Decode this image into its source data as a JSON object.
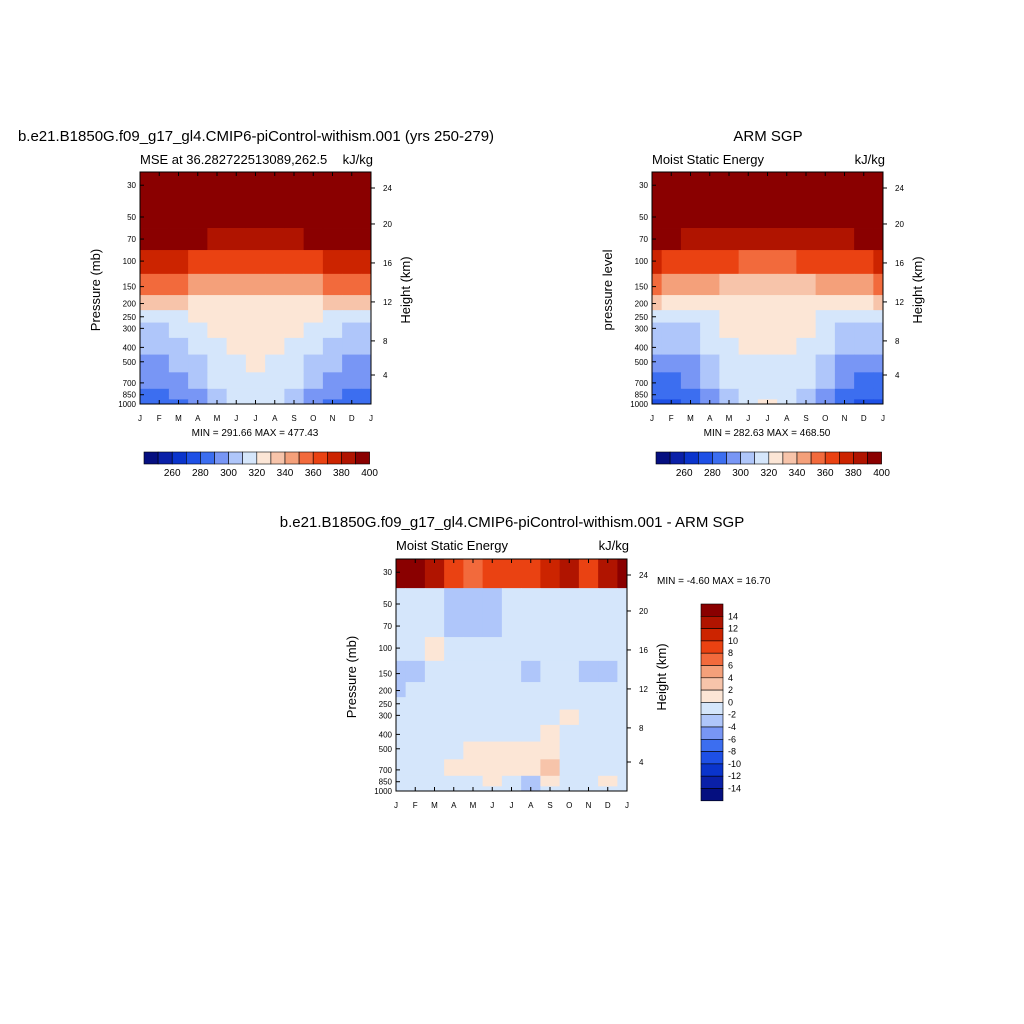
{
  "chart_data": [
    {
      "type": "heatmap",
      "title": "b.e21.B1850G.f09_g17_gl4.CMIP6-piControl-withism.001 (yrs 250-279)",
      "subtitle_left": "MSE at 36.282722513089,262.5",
      "subtitle_right": "kJ/kg",
      "ylabel": "Pressure (mb)",
      "ylabel_right": "Height (km)",
      "x_ticks": [
        "J",
        "F",
        "M",
        "A",
        "M",
        "J",
        "J",
        "A",
        "S",
        "O",
        "N",
        "D",
        "J"
      ],
      "y_ticks": [
        "30",
        "50",
        "70",
        "100",
        "150",
        "200",
        "250",
        "300",
        "400",
        "500",
        "700",
        "850",
        "1000"
      ],
      "y_right_ticks": [
        "24",
        "20",
        "16",
        "12",
        "8",
        "4"
      ],
      "stats": "MIN = 291.66 MAX = 477.43",
      "colorbar_labels": [
        "260",
        "280",
        "300",
        "320",
        "340",
        "360",
        "380",
        "400"
      ],
      "levels": [
        250,
        260,
        270,
        280,
        290,
        300,
        310,
        320,
        330,
        340,
        350,
        360,
        370,
        380,
        390,
        400
      ],
      "values": [
        [
          480,
          480,
          480,
          480,
          480,
          480,
          480,
          480,
          480,
          480,
          480,
          480,
          480
        ],
        [
          470,
          470,
          470,
          470,
          470,
          470,
          470,
          470,
          470,
          470,
          470,
          470,
          470
        ],
        [
          405,
          405,
          403,
          400,
          398,
          396,
          395,
          396,
          398,
          400,
          402,
          405,
          405
        ],
        [
          385,
          383,
          380,
          377,
          375,
          373,
          372,
          373,
          375,
          377,
          380,
          383,
          385
        ],
        [
          365,
          363,
          360,
          357,
          354,
          351,
          350,
          351,
          354,
          357,
          360,
          363,
          365
        ],
        [
          345,
          343,
          341,
          339,
          337,
          335,
          334,
          335,
          337,
          339,
          341,
          343,
          345
        ],
        [
          328,
          327,
          327,
          330,
          334,
          337,
          338,
          337,
          334,
          330,
          327,
          327,
          328
        ],
        [
          318,
          318,
          320,
          325,
          331,
          335,
          336,
          335,
          331,
          325,
          320,
          318,
          318
        ],
        [
          312,
          314,
          318,
          323,
          328,
          332,
          333,
          332,
          328,
          323,
          318,
          314,
          312
        ],
        [
          306,
          308,
          312,
          318,
          324,
          328,
          330,
          328,
          324,
          318,
          312,
          308,
          306
        ],
        [
          300,
          302,
          306,
          313,
          321,
          327,
          329,
          327,
          321,
          313,
          306,
          302,
          300
        ],
        [
          295,
          297,
          301,
          308,
          318,
          326,
          328,
          326,
          318,
          308,
          301,
          297,
          295
        ],
        [
          292,
          294,
          298,
          305,
          316,
          325,
          327,
          325,
          316,
          305,
          298,
          294,
          292
        ]
      ]
    },
    {
      "type": "heatmap",
      "title": "ARM SGP",
      "subtitle_left": "Moist Static Energy",
      "subtitle_right": "kJ/kg",
      "ylabel": "pressure level",
      "ylabel_right": "Height (km)",
      "x_ticks": [
        "J",
        "F",
        "M",
        "A",
        "M",
        "J",
        "J",
        "A",
        "S",
        "O",
        "N",
        "D",
        "J"
      ],
      "y_ticks": [
        "30",
        "50",
        "70",
        "100",
        "150",
        "200",
        "250",
        "300",
        "400",
        "500",
        "700",
        "850",
        "1000"
      ],
      "y_right_ticks": [
        "24",
        "20",
        "16",
        "12",
        "8",
        "4"
      ],
      "stats": "MIN = 282.63 MAX = 468.50",
      "colorbar_labels": [
        "260",
        "280",
        "300",
        "320",
        "340",
        "360",
        "380",
        "400"
      ],
      "levels": [
        250,
        260,
        270,
        280,
        290,
        300,
        310,
        320,
        330,
        340,
        350,
        360,
        370,
        380,
        390,
        400
      ],
      "values": [
        [
          470,
          470,
          470,
          470,
          470,
          470,
          470,
          470,
          470,
          470,
          470,
          470,
          470
        ],
        [
          460,
          460,
          460,
          460,
          460,
          460,
          460,
          460,
          460,
          460,
          460,
          460,
          460
        ],
        [
          400,
          400,
          398,
          396,
          394,
          392,
          391,
          392,
          394,
          396,
          398,
          400,
          400
        ],
        [
          380,
          378,
          376,
          373,
          371,
          369,
          368,
          369,
          371,
          373,
          376,
          378,
          380
        ],
        [
          360,
          358,
          355,
          352,
          349,
          347,
          346,
          347,
          349,
          352,
          355,
          358,
          360
        ],
        [
          340,
          338,
          337,
          336,
          334,
          333,
          332,
          333,
          334,
          336,
          337,
          338,
          340
        ],
        [
          325,
          324,
          325,
          328,
          333,
          336,
          337,
          336,
          333,
          328,
          325,
          324,
          325
        ],
        [
          316,
          316,
          318,
          323,
          330,
          334,
          335,
          334,
          330,
          323,
          318,
          316,
          316
        ],
        [
          310,
          312,
          316,
          321,
          327,
          331,
          332,
          331,
          327,
          321,
          316,
          312,
          310
        ],
        [
          303,
          305,
          309,
          316,
          323,
          327,
          329,
          327,
          323,
          316,
          309,
          305,
          303
        ],
        [
          297,
          299,
          303,
          311,
          320,
          326,
          328,
          326,
          320,
          311,
          303,
          299,
          297
        ],
        [
          290,
          292,
          297,
          306,
          317,
          326,
          329,
          326,
          317,
          306,
          297,
          292,
          290
        ],
        [
          285,
          287,
          293,
          302,
          315,
          327,
          332,
          327,
          315,
          302,
          293,
          287,
          285
        ]
      ]
    },
    {
      "type": "heatmap",
      "title": "b.e21.B1850G.f09_g17_gl4.CMIP6-piControl-withism.001 - ARM SGP",
      "subtitle_left": "Moist Static Energy",
      "subtitle_right": "kJ/kg",
      "ylabel": "Pressure (mb)",
      "ylabel_right": "Height (km)",
      "x_ticks": [
        "J",
        "F",
        "M",
        "A",
        "M",
        "J",
        "J",
        "A",
        "S",
        "O",
        "N",
        "D",
        "J"
      ],
      "y_ticks": [
        "30",
        "50",
        "70",
        "100",
        "150",
        "200",
        "250",
        "300",
        "400",
        "500",
        "700",
        "850",
        "1000"
      ],
      "y_right_ticks": [
        "24",
        "20",
        "16",
        "12",
        "8",
        "4"
      ],
      "stats": "MIN =  -4.60 MAX =  16.70",
      "colorbar_labels": [
        "14",
        "12",
        "10",
        "8",
        "6",
        "4",
        "2",
        "0",
        "-2",
        "-4",
        "-6",
        "-8",
        "-10",
        "-12",
        "-14"
      ],
      "levels": [
        -16,
        -14,
        -12,
        -10,
        -8,
        -6,
        -4,
        -2,
        0,
        2,
        4,
        6,
        8,
        10,
        12,
        14
      ],
      "values": [
        [
          16,
          15,
          12,
          8,
          7,
          8,
          9,
          8,
          11,
          12,
          8,
          13,
          15
        ],
        [
          -1,
          -1,
          -1,
          -3,
          -3,
          -3,
          -1,
          -1,
          -1,
          -1,
          -1,
          -1,
          -1
        ],
        [
          -1,
          -1,
          -1,
          -3,
          -3,
          -3,
          -1,
          -1,
          -1,
          -1,
          -1,
          -1,
          -1
        ],
        [
          -1,
          -1,
          1,
          -1,
          -1,
          -1,
          -1,
          -1,
          -1,
          -1,
          -1,
          -1,
          -1
        ],
        [
          -3,
          -3,
          -1,
          -1,
          -1,
          -1,
          -1,
          -3,
          -1,
          -1,
          -3,
          -3,
          -1
        ],
        [
          -3,
          -1,
          -1,
          -1,
          -1,
          -1,
          -1,
          -1,
          -1,
          -1,
          -1,
          -1,
          -1
        ],
        [
          -1,
          -1,
          -1,
          -1,
          -1,
          -1,
          -1,
          -1,
          -1,
          -1,
          -1,
          -1,
          -1
        ],
        [
          -1,
          -1,
          -1,
          -1,
          -1,
          -1,
          -1,
          -1,
          -1,
          1,
          -1,
          -1,
          -1
        ],
        [
          -1,
          -1,
          -1,
          -1,
          -1,
          -1,
          -1,
          -1,
          1,
          -1,
          -1,
          -1,
          -1
        ],
        [
          -1,
          -1,
          -1,
          -1,
          1,
          1,
          1,
          1,
          1,
          -1,
          -1,
          -1,
          -1
        ],
        [
          -1,
          -1,
          -1,
          1,
          1,
          1,
          1,
          1,
          3,
          -1,
          -1,
          -1,
          -1
        ],
        [
          -1,
          -1,
          -1,
          -1,
          -1,
          1,
          -1,
          -3,
          1,
          -1,
          -1,
          1,
          -1
        ],
        [
          -1,
          -1,
          -1,
          -1,
          -1,
          -1,
          -1,
          -3,
          -1,
          -1,
          -1,
          -1,
          -1
        ]
      ]
    }
  ],
  "colors": {
    "fill_palette": [
      "#050f80",
      "#0a20a8",
      "#0a34cc",
      "#1e50e6",
      "#3c6ef0",
      "#7896f5",
      "#afc6fa",
      "#d5e6fb",
      "#fce6d6",
      "#f7c4aa",
      "#f4a07a",
      "#f26a3c",
      "#ea4212",
      "#cc2400",
      "#b01400",
      "#8a0000"
    ]
  }
}
